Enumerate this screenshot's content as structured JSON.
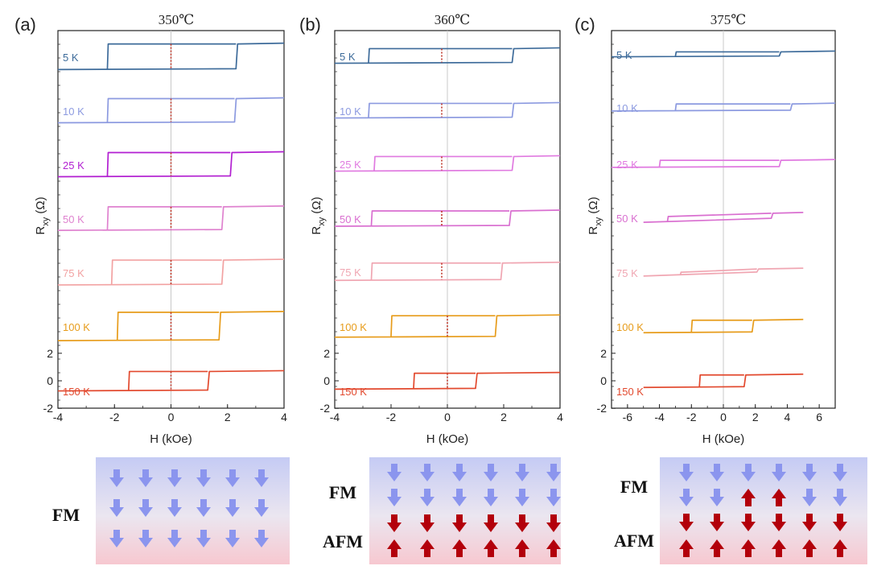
{
  "figure": {
    "ylabel_main": "R",
    "ylabel_sub": "xy",
    "ylabel_unit": " (Ω)",
    "xlabel": "H (kOe)"
  },
  "chart_data": [
    {
      "type": "line",
      "panel": "(a)",
      "title": "350℃",
      "xlabel": "H (kOe)",
      "ylabel": "Rxy (Ω)",
      "xlim": [
        -4,
        4
      ],
      "xticks": [
        -4,
        -2,
        0,
        2,
        4
      ],
      "yticks": [
        -2,
        0,
        2
      ],
      "ylim_bottom_trace": [
        -2,
        2
      ],
      "series": [
        {
          "name": "5 K",
          "color": "#3d6b9a",
          "hc_neg": -2.25,
          "hc_pos": 2.3,
          "amp": 1.8,
          "x_range": [
            -4,
            4
          ]
        },
        {
          "name": "10 K",
          "color": "#8c9ae0",
          "hc_neg": -2.25,
          "hc_pos": 2.25,
          "amp": 1.7,
          "x_range": [
            -4,
            4
          ]
        },
        {
          "name": "25 K",
          "color": "#b21fd1",
          "hc_neg": -2.25,
          "hc_pos": 2.1,
          "amp": 1.7,
          "x_range": [
            -4,
            4
          ]
        },
        {
          "name": "50 K",
          "color": "#df82cf",
          "hc_neg": -2.25,
          "hc_pos": 1.8,
          "amp": 1.65,
          "x_range": [
            -4,
            4
          ]
        },
        {
          "name": "75 K",
          "color": "#f2a2a2",
          "hc_neg": -2.1,
          "hc_pos": 1.8,
          "amp": 1.75,
          "x_range": [
            -4,
            4
          ]
        },
        {
          "name": "100 K",
          "color": "#e79c1b",
          "hc_neg": -1.9,
          "hc_pos": 1.7,
          "amp": 2.0,
          "x_range": [
            -4,
            4
          ]
        },
        {
          "name": "150 K",
          "color": "#e2492e",
          "hc_neg": -1.5,
          "hc_pos": 1.3,
          "amp": 1.35,
          "x_range": [
            -4,
            4
          ]
        }
      ]
    },
    {
      "type": "line",
      "panel": "(b)",
      "title": "360℃",
      "xlabel": "H (kOe)",
      "ylabel": "Rxy (Ω)",
      "xlim": [
        -4,
        4
      ],
      "xticks": [
        -4,
        -2,
        0,
        2,
        4
      ],
      "yticks": [
        -2,
        0,
        2
      ],
      "ylim_bottom_trace": [
        -2,
        2
      ],
      "series": [
        {
          "name": "5 K",
          "color": "#3d6b9a",
          "hc_neg": -2.8,
          "hc_pos": 2.3,
          "amp": 1.0,
          "x_range": [
            -4,
            4
          ]
        },
        {
          "name": "10 K",
          "color": "#8c9ae0",
          "hc_neg": -2.8,
          "hc_pos": 2.3,
          "amp": 1.0,
          "x_range": [
            -4,
            4
          ]
        },
        {
          "name": "25 K",
          "color": "#e07ae0",
          "hc_neg": -2.6,
          "hc_pos": 2.3,
          "amp": 1.0,
          "x_range": [
            -4,
            4
          ]
        },
        {
          "name": "50 K",
          "color": "#d96fd0",
          "hc_neg": -2.7,
          "hc_pos": 2.2,
          "amp": 1.05,
          "x_range": [
            -4,
            4
          ]
        },
        {
          "name": "75 K",
          "color": "#f0a6b2",
          "hc_neg": -2.7,
          "hc_pos": 1.9,
          "amp": 1.2,
          "x_range": [
            -4,
            4
          ]
        },
        {
          "name": "100 K",
          "color": "#e79c1b",
          "hc_neg": -2.0,
          "hc_pos": 1.7,
          "amp": 1.5,
          "x_range": [
            -4,
            4
          ]
        },
        {
          "name": "150 K",
          "color": "#e2492e",
          "hc_neg": -1.2,
          "hc_pos": 1.0,
          "amp": 1.1,
          "x_range": [
            -4,
            4
          ]
        }
      ]
    },
    {
      "type": "line",
      "panel": "(c)",
      "title": "375℃",
      "xlabel": "H (kOe)",
      "ylabel": "Rxy (Ω)",
      "xlim": [
        -7,
        7
      ],
      "xticks": [
        -6,
        -4,
        -2,
        0,
        2,
        4,
        6
      ],
      "yticks": [
        -2,
        0,
        2
      ],
      "ylim_bottom_trace": [
        -2,
        2
      ],
      "series": [
        {
          "name": "5 K",
          "color": "#3d6b9a",
          "hc_neg": -3.0,
          "hc_pos": 3.5,
          "amp": 0.3,
          "x_range": [
            -7,
            7
          ]
        },
        {
          "name": "10 K",
          "color": "#8c9ae0",
          "hc_neg": -3.0,
          "hc_pos": 4.2,
          "amp": 0.45,
          "x_range": [
            -7,
            7
          ]
        },
        {
          "name": "25 K",
          "color": "#e07ae0",
          "hc_neg": -4.0,
          "hc_pos": 3.5,
          "amp": 0.45,
          "x_range": [
            -7,
            7
          ]
        },
        {
          "name": "50 K",
          "color": "#d96fd0",
          "hc_neg": -3.5,
          "hc_pos": 3.0,
          "amp": 0.6,
          "x_range": [
            -5,
            5
          ]
        },
        {
          "name": "75 K",
          "color": "#f0a6b2",
          "hc_neg": -2.7,
          "hc_pos": 2.1,
          "amp": 0.45,
          "x_range": [
            -5,
            5
          ]
        },
        {
          "name": "100 K",
          "color": "#e79c1b",
          "hc_neg": -2.0,
          "hc_pos": 1.8,
          "amp": 0.85,
          "x_range": [
            -5,
            5
          ]
        },
        {
          "name": "150 K",
          "color": "#e2492e",
          "hc_neg": -1.5,
          "hc_pos": 1.3,
          "amp": 0.85,
          "x_range": [
            -5,
            5
          ]
        }
      ]
    }
  ],
  "spin_diagrams": [
    {
      "labels": [
        "FM"
      ],
      "rows": [
        [
          "down",
          "down",
          "down",
          "down",
          "down",
          "down"
        ],
        [
          "down",
          "down",
          "down",
          "down",
          "down",
          "down"
        ],
        [
          "down",
          "down",
          "down",
          "down",
          "down",
          "down"
        ]
      ],
      "row_colors": [
        "blue",
        "blue",
        "blue"
      ]
    },
    {
      "labels": [
        "FM",
        "AFM"
      ],
      "rows": [
        [
          "down",
          "down",
          "down",
          "down",
          "down",
          "down"
        ],
        [
          "down",
          "down",
          "down",
          "down",
          "down",
          "down"
        ],
        [
          "down",
          "down",
          "down",
          "down",
          "down",
          "down"
        ],
        [
          "up",
          "up",
          "up",
          "up",
          "up",
          "up"
        ]
      ],
      "row_colors": [
        "blue",
        "blue",
        "red",
        "red"
      ]
    },
    {
      "labels": [
        "FM",
        "AFM"
      ],
      "rows": [
        [
          "down",
          "down",
          "down",
          "down",
          "down",
          "down"
        ],
        [
          "down",
          "down",
          "up",
          "up",
          "down",
          "down"
        ],
        [
          "down",
          "down",
          "down",
          "down",
          "down",
          "down"
        ],
        [
          "up",
          "up",
          "up",
          "up",
          "up",
          "up"
        ]
      ],
      "row_colors": [
        "blue",
        "blue_mixed",
        "red",
        "red"
      ]
    }
  ],
  "colors": {
    "fm_arrow": "#8b95ee",
    "afm_arrow": "#b3000b",
    "dotted_line": "#c0392b",
    "zero_line": "#c8c8c8",
    "fm_bg": "#c5cbf4",
    "afm_bg": "#f6ccd3"
  }
}
